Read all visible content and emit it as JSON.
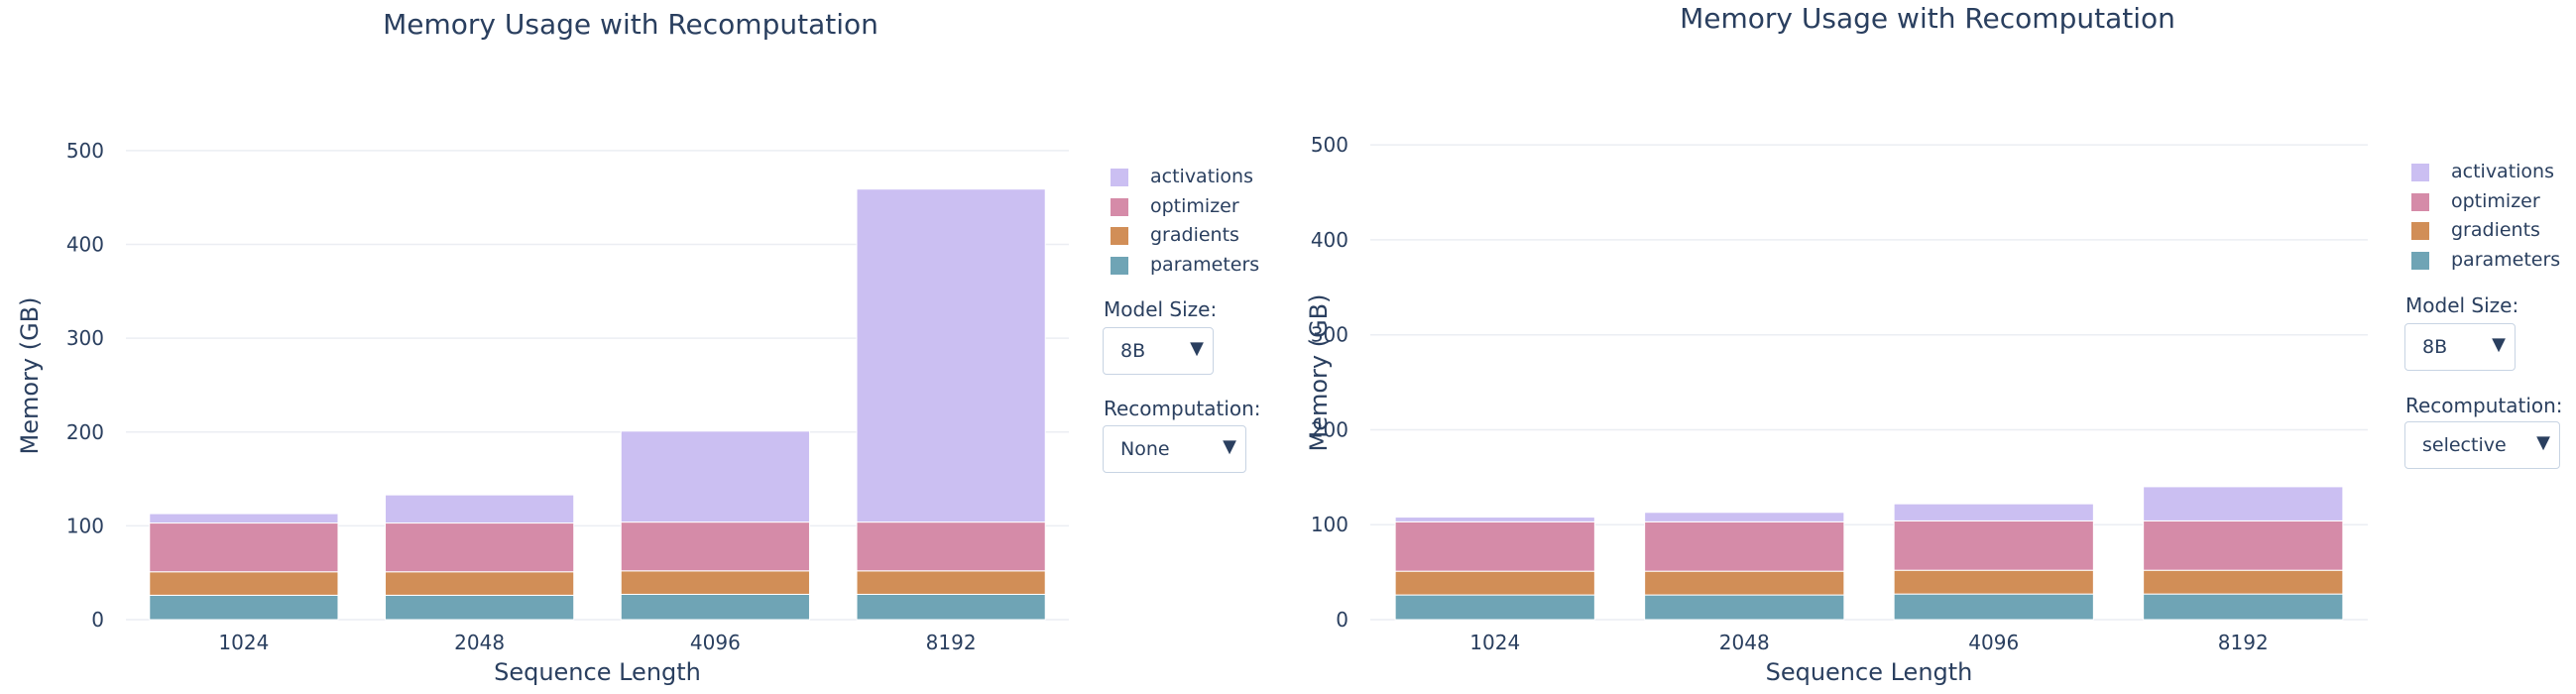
{
  "charts": [
    {
      "id": "left",
      "controls": {
        "model_size_label": "Model Size:",
        "model_size_value": "8B",
        "recomputation_label": "Recomputation:",
        "recomputation_value": "None"
      },
      "chart_data": {
        "type": "bar",
        "stacked": true,
        "title": "Memory Usage with Recomputation",
        "xlabel": "Sequence Length",
        "ylabel": "Memory (GB)",
        "categories": [
          "1024",
          "2048",
          "4096",
          "8192"
        ],
        "ylim": [
          0,
          520
        ],
        "yticks": [
          0,
          100,
          200,
          300,
          400,
          500
        ],
        "grid": true,
        "legend_position": "right",
        "series": [
          {
            "name": "parameters",
            "color": "#6fa4b5",
            "values": [
              26,
              26,
              27,
              27
            ]
          },
          {
            "name": "gradients",
            "color": "#d18e57",
            "values": [
              25,
              25,
              25,
              25
            ]
          },
          {
            "name": "optimizer",
            "color": "#d58ba8",
            "values": [
              52,
              52,
              52,
              52
            ]
          },
          {
            "name": "activations",
            "color": "#cbbff2",
            "values": [
              10,
              30,
              97,
              355
            ]
          }
        ]
      }
    },
    {
      "id": "right",
      "controls": {
        "model_size_label": "Model Size:",
        "model_size_value": "8B",
        "recomputation_label": "Recomputation:",
        "recomputation_value": "selective"
      },
      "chart_data": {
        "type": "bar",
        "stacked": true,
        "title": "Memory Usage with Recomputation",
        "xlabel": "Sequence Length",
        "ylabel": "Memory (GB)",
        "categories": [
          "1024",
          "2048",
          "4096",
          "8192"
        ],
        "ylim": [
          0,
          520
        ],
        "yticks": [
          0,
          100,
          200,
          300,
          400,
          500
        ],
        "grid": true,
        "legend_position": "right",
        "series": [
          {
            "name": "parameters",
            "color": "#6fa4b5",
            "values": [
              26,
              26,
              27,
              27
            ]
          },
          {
            "name": "gradients",
            "color": "#d18e57",
            "values": [
              25,
              25,
              25,
              25
            ]
          },
          {
            "name": "optimizer",
            "color": "#d58ba8",
            "values": [
              52,
              52,
              52,
              52
            ]
          },
          {
            "name": "activations",
            "color": "#cbbff2",
            "values": [
              5,
              10,
              18,
              36
            ]
          }
        ]
      }
    }
  ]
}
